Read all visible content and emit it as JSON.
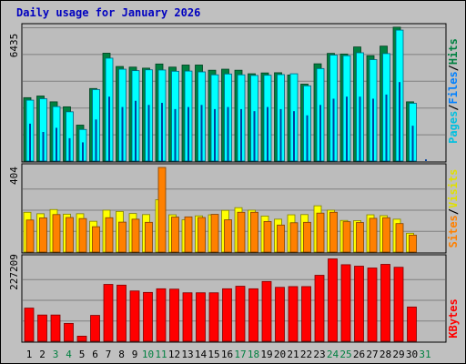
{
  "title": "Daily usage for January 2026",
  "colors": {
    "background": "#c0c0c0",
    "panel": "#bcbcbc",
    "gridline": "#808080",
    "hits": "#008040",
    "files": "#00ffff",
    "pages": "#00c0e0",
    "visits": "#ffff00",
    "sites": "#ff8000",
    "kbytes": "#ff0000",
    "title": "#0000c0",
    "weekend_label": "#008040",
    "weekday_label": "#000000"
  },
  "chart_data": [
    {
      "type": "bar",
      "panel": "hits-files-pages",
      "max_label": "6435",
      "ylim": [
        0,
        6435
      ],
      "categories": [
        "1",
        "2",
        "3",
        "4",
        "5",
        "6",
        "7",
        "8",
        "9",
        "10",
        "11",
        "12",
        "13",
        "14",
        "15",
        "16",
        "17",
        "18",
        "19",
        "20",
        "21",
        "22",
        "23",
        "24",
        "25",
        "26",
        "27",
        "28",
        "29",
        "30",
        "31"
      ],
      "series": [
        {
          "name": "Hits",
          "values": [
            3050,
            3130,
            2850,
            2610,
            1730,
            3490,
            5190,
            4550,
            4520,
            4470,
            4670,
            4520,
            4620,
            4620,
            4370,
            4420,
            4370,
            4200,
            4240,
            4250,
            4140,
            3700,
            4680,
            5180,
            5150,
            5490,
            5070,
            5530,
            6440,
            2850,
            0
          ]
        },
        {
          "name": "Files",
          "values": [
            2930,
            3000,
            2620,
            2370,
            1520,
            3440,
            4950,
            4420,
            4350,
            4390,
            4380,
            4320,
            4330,
            4290,
            4150,
            4190,
            4150,
            4120,
            4130,
            4160,
            4200,
            3620,
            4450,
            5100,
            5070,
            5210,
            4880,
            5170,
            6300,
            2780,
            0
          ]
        },
        {
          "name": "Pages",
          "values": [
            1800,
            1400,
            1600,
            1100,
            900,
            2000,
            3100,
            2600,
            2900,
            2700,
            2800,
            2500,
            2600,
            2700,
            2500,
            2600,
            2500,
            2400,
            2600,
            2500,
            2400,
            2200,
            2700,
            3000,
            3100,
            3100,
            3000,
            3200,
            3800,
            1700,
            80
          ]
        }
      ],
      "side_labels": [
        "Pages",
        "Files",
        "Hits"
      ]
    },
    {
      "type": "bar",
      "panel": "visits-sites",
      "max_label": "404",
      "ylim": [
        0,
        404
      ],
      "series": [
        {
          "name": "Visits",
          "values": [
            190,
            183,
            203,
            181,
            183,
            147,
            200,
            194,
            184,
            179,
            250,
            178,
            154,
            173,
            178,
            199,
            212,
            200,
            172,
            157,
            178,
            179,
            221,
            200,
            151,
            150,
            178,
            174,
            157,
            90,
            0
          ]
        },
        {
          "name": "Sites",
          "values": [
            153,
            163,
            179,
            165,
            160,
            121,
            164,
            143,
            157,
            142,
            404,
            167,
            168,
            165,
            180,
            154,
            190,
            190,
            146,
            129,
            140,
            142,
            186,
            190,
            145,
            141,
            161,
            164,
            136,
            81,
            0
          ]
        }
      ],
      "side_labels": [
        "Sites",
        "Visits"
      ]
    },
    {
      "type": "bar",
      "panel": "kbytes",
      "max_label": "227209",
      "ylim": [
        0,
        227209
      ],
      "series": [
        {
          "name": "KBytes",
          "values": [
            91000,
            72000,
            72000,
            49000,
            14000,
            71000,
            156000,
            154000,
            138000,
            134000,
            144000,
            143000,
            133000,
            133000,
            133000,
            144000,
            151000,
            144000,
            164000,
            148000,
            150000,
            150000,
            181000,
            226000,
            210000,
            206000,
            201000,
            211000,
            203000,
            94000,
            0
          ]
        }
      ],
      "side_labels": [
        "KBytes"
      ]
    }
  ],
  "days": [
    "1",
    "2",
    "3",
    "4",
    "5",
    "6",
    "7",
    "8",
    "9",
    "10",
    "11",
    "12",
    "13",
    "14",
    "15",
    "16",
    "17",
    "18",
    "19",
    "20",
    "21",
    "22",
    "23",
    "24",
    "25",
    "26",
    "27",
    "28",
    "29",
    "30",
    "31"
  ],
  "weekend_days": [
    3,
    4,
    10,
    11,
    17,
    18,
    24,
    25,
    31
  ]
}
